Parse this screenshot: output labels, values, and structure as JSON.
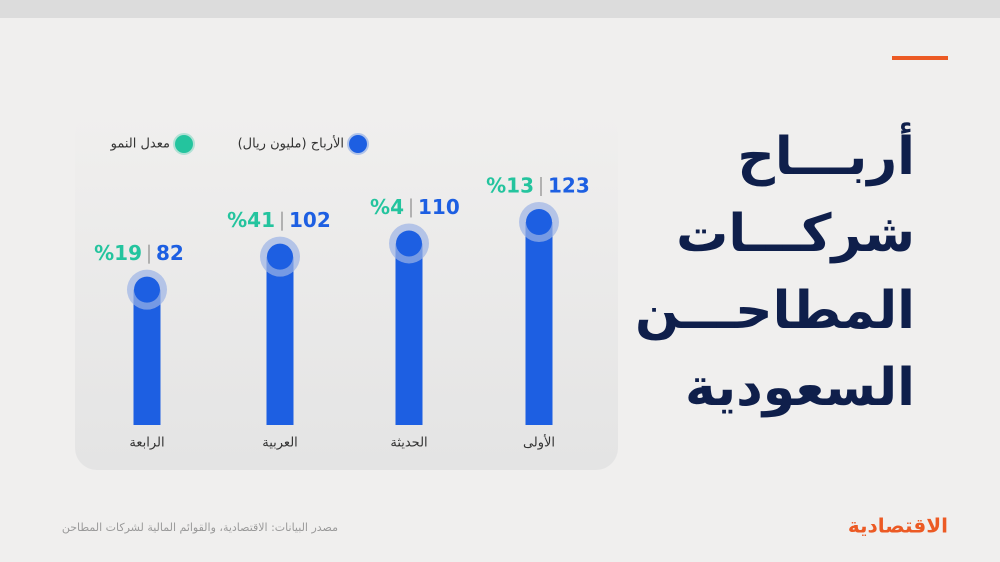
{
  "chart_data": {
    "type": "bar",
    "title": [
      "أربـــاح",
      "شركـــات",
      "المطاحـــن",
      "السعودية"
    ],
    "categories": [
      "الرابعة",
      "العربية",
      "الحديثة",
      "الأولى"
    ],
    "series": [
      {
        "name": "الأرباح (مليون ريال)",
        "color": "#1d5fe2",
        "values": [
          82,
          102,
          110,
          123
        ]
      },
      {
        "name": "معدل النمو",
        "color": "#24c49e",
        "values": [
          19,
          41,
          4,
          13
        ],
        "value_labels": [
          "%19",
          "%41",
          "%4",
          "%13"
        ]
      }
    ],
    "source": "مصدر البيانات: الاقتصادية، والقوائم المالية لشركات المطاحن",
    "brand": "الاقتصادية"
  }
}
